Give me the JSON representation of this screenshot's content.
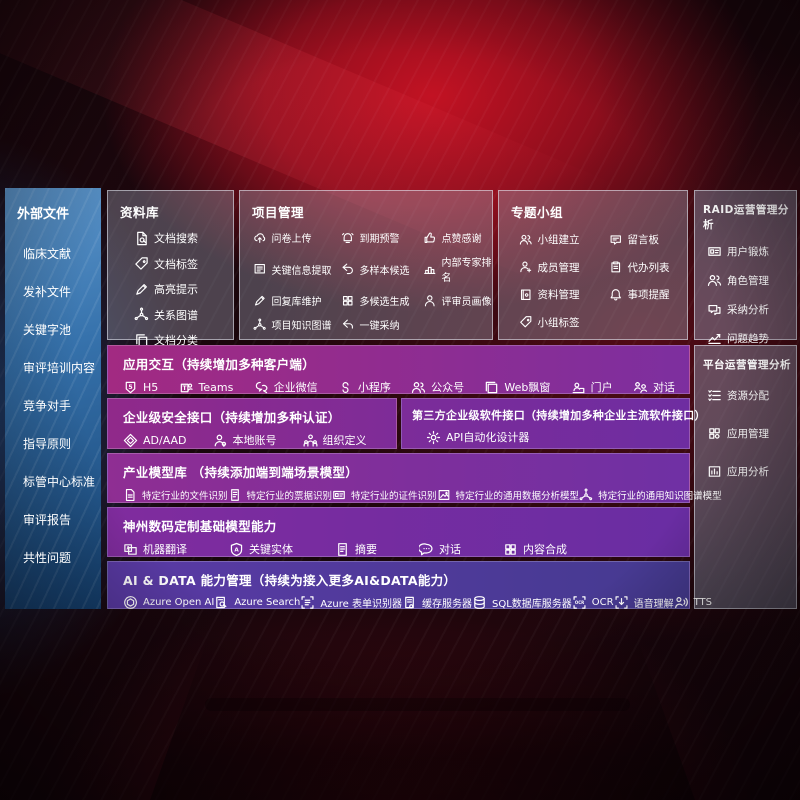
{
  "left_panel": {
    "title": "外部文件",
    "items": [
      "临床文献",
      "发补文件",
      "关键字池",
      "审评培训内容",
      "竞争对手",
      "指导原则",
      "标管中心标准",
      "审评报告",
      "共性问题"
    ]
  },
  "repository": {
    "title": "资料库",
    "items": [
      {
        "icon": "doc-search-icon",
        "label": "文档搜索"
      },
      {
        "icon": "tag-icon",
        "label": "文档标签"
      },
      {
        "icon": "pen-icon",
        "label": "高亮提示"
      },
      {
        "icon": "graph-icon",
        "label": "关系图谱"
      },
      {
        "icon": "copy-icon",
        "label": "文档分类"
      }
    ]
  },
  "project": {
    "title": "项目管理",
    "items": [
      {
        "icon": "cloud-upload-icon",
        "label": "问卷上传"
      },
      {
        "icon": "alarm-icon",
        "label": "到期预警"
      },
      {
        "icon": "thumb-up-icon",
        "label": "点赞感谢"
      },
      {
        "icon": "extract-icon",
        "label": "关键信息提取"
      },
      {
        "icon": "reply-icon",
        "label": "多样本候选"
      },
      {
        "icon": "podium-icon",
        "label": "内部专家排名"
      },
      {
        "icon": "pen-icon",
        "label": "回复库维护"
      },
      {
        "icon": "grid-icon",
        "label": "多候选生成"
      },
      {
        "icon": "person-icon",
        "label": "评审员画像"
      },
      {
        "icon": "graph-icon",
        "label": "项目知识图谱"
      },
      {
        "icon": "adopt-arrow-icon",
        "label": "一键采纳"
      }
    ]
  },
  "groups": {
    "title": "专题小组",
    "items": [
      {
        "icon": "people-icon",
        "label": "小组建立"
      },
      {
        "icon": "bbs-icon",
        "label": "留言板"
      },
      {
        "icon": "person-add-icon",
        "label": "成员管理"
      },
      {
        "icon": "clipboard-icon",
        "label": "代办列表"
      },
      {
        "icon": "book-icon",
        "label": "资料管理"
      },
      {
        "icon": "bell-icon",
        "label": "事项提醒"
      },
      {
        "icon": "tag-icon",
        "label": "小组标签"
      }
    ]
  },
  "raid": {
    "title": "RAID运营管理分析",
    "items": [
      {
        "icon": "idcard-icon",
        "label": "用户锻炼"
      },
      {
        "icon": "roles-icon",
        "label": "角色管理"
      },
      {
        "icon": "qa-bubble-icon",
        "label": "采纳分析"
      },
      {
        "icon": "trend-icon",
        "label": "问题趋势"
      }
    ]
  },
  "platform": {
    "title": "平台运营管理分析",
    "items": [
      {
        "icon": "list-icon",
        "label": "资源分配"
      },
      {
        "icon": "apps-icon",
        "label": "应用管理"
      },
      {
        "icon": "app-chart-icon",
        "label": "应用分析"
      }
    ]
  },
  "interaction": {
    "title": "应用交互（持续增加多种客户端）",
    "items": [
      {
        "icon": "h5-icon",
        "label": "H5"
      },
      {
        "icon": "teams-icon",
        "label": "Teams"
      },
      {
        "icon": "wechat-icon",
        "label": "企业微信"
      },
      {
        "icon": "miniprogram-icon",
        "label": "小程序"
      },
      {
        "icon": "pubaccount-icon",
        "label": "公众号"
      },
      {
        "icon": "webwindow-icon",
        "label": "Web飘窗"
      },
      {
        "icon": "portal-icon",
        "label": "门户"
      },
      {
        "icon": "dialog-icon",
        "label": "对话"
      }
    ]
  },
  "security": {
    "title": "企业级安全接口（持续增加多种认证）",
    "items": [
      {
        "icon": "diamond-icon",
        "label": "AD/AAD"
      },
      {
        "icon": "person-badge-icon",
        "label": "本地账号"
      },
      {
        "icon": "org-icon",
        "label": "组织定义"
      }
    ]
  },
  "third_party": {
    "title": "第三方企业级软件接口（持续增加多种企业主流软件接口）",
    "items": [
      {
        "icon": "api-gear-icon",
        "label": "API自动化设计器"
      }
    ]
  },
  "industry_models": {
    "title": "产业模型库 （持续添加端到端场景模型）",
    "items": [
      {
        "icon": "file-icon",
        "label": "特定行业的文件识别"
      },
      {
        "icon": "receipt-icon",
        "label": "特定行业的票据识别"
      },
      {
        "icon": "cert-icon",
        "label": "特定行业的证件识别"
      },
      {
        "icon": "image-icon",
        "label": "特定行业的通用数据分析模型"
      },
      {
        "icon": "graph-icon",
        "label": "特定行业的通用知识图谱模型"
      }
    ]
  },
  "base_models": {
    "title": "神州数码定制基础模型能力",
    "items": [
      {
        "icon": "translate-icon",
        "label": "机器翻译"
      },
      {
        "icon": "shield-a-icon",
        "label": "关键实体"
      },
      {
        "icon": "summary-icon",
        "label": "摘要"
      },
      {
        "icon": "chat-icon",
        "label": "对话"
      },
      {
        "icon": "compose-icon",
        "label": "内容合成"
      }
    ]
  },
  "ai_data": {
    "title": "AI & DATA 能力管理（持续为接入更多AI&DATA能力）",
    "items": [
      {
        "icon": "openai-icon",
        "label": "Azure Open AI"
      },
      {
        "icon": "azure-search-icon",
        "label": "Azure Search"
      },
      {
        "icon": "form-icon",
        "label": "Azure 表单识别器"
      },
      {
        "icon": "cache-icon",
        "label": "缓存服务器"
      },
      {
        "icon": "db-icon",
        "label": "SQL数据库服务器"
      },
      {
        "icon": "ocr-icon",
        "label": "OCR"
      },
      {
        "icon": "voice-icon",
        "label": "语音理解"
      },
      {
        "icon": "tts-icon",
        "label": "TTS"
      }
    ]
  },
  "colors": {
    "accent_red": "#c21223",
    "accent_blue": "#3672ac",
    "purple_left": "#a22a82",
    "purple_right": "#6e2da1",
    "indigo_row": "#5a3aa5"
  }
}
